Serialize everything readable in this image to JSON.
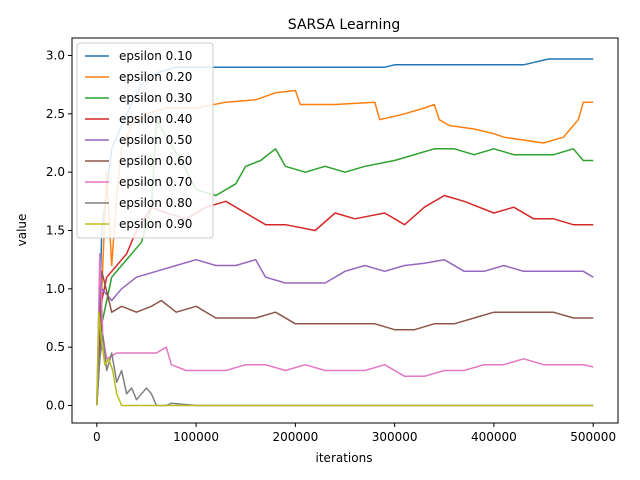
{
  "chart_data": {
    "type": "line",
    "title": "SARSA Learning",
    "xlabel": "iterations",
    "ylabel": "value",
    "xlim": [
      -25000,
      525000
    ],
    "ylim": [
      -0.15,
      3.15
    ],
    "xticks": [
      0,
      100000,
      200000,
      300000,
      400000,
      500000
    ],
    "xtick_labels": [
      "0",
      "100000",
      "200000",
      "300000",
      "400000",
      "500000"
    ],
    "yticks": [
      0.0,
      0.5,
      1.0,
      1.5,
      2.0,
      2.5,
      3.0
    ],
    "ytick_labels": [
      "0.0",
      "0.5",
      "1.0",
      "1.5",
      "2.0",
      "2.5",
      "3.0"
    ],
    "grid": false,
    "legend_position": "upper-left",
    "series": [
      {
        "name": "epsilon 0.10",
        "color": "#1f77b4",
        "x": [
          0,
          5000,
          15000,
          30000,
          45000,
          60000,
          80000,
          100000,
          150000,
          200000,
          250000,
          290000,
          300000,
          350000,
          400000,
          430000,
          445000,
          455000,
          470000,
          500000
        ],
        "y": [
          0.0,
          1.5,
          2.2,
          2.5,
          2.75,
          2.85,
          2.9,
          2.9,
          2.9,
          2.9,
          2.9,
          2.9,
          2.92,
          2.92,
          2.92,
          2.92,
          2.95,
          2.97,
          2.97,
          2.97
        ]
      },
      {
        "name": "epsilon 0.20",
        "color": "#ff7f0e",
        "x": [
          0,
          5000,
          10000,
          15000,
          20000,
          25000,
          35000,
          50000,
          70000,
          100000,
          130000,
          160000,
          180000,
          200000,
          205000,
          240000,
          280000,
          285000,
          310000,
          330000,
          340000,
          345000,
          355000,
          380000,
          400000,
          410000,
          450000,
          470000,
          485000,
          490000,
          500000
        ],
        "y": [
          0.0,
          1.0,
          2.0,
          1.2,
          1.8,
          2.2,
          2.4,
          2.5,
          2.55,
          2.55,
          2.6,
          2.62,
          2.68,
          2.7,
          2.58,
          2.58,
          2.6,
          2.45,
          2.5,
          2.55,
          2.58,
          2.45,
          2.4,
          2.37,
          2.33,
          2.3,
          2.25,
          2.3,
          2.45,
          2.6,
          2.6
        ]
      },
      {
        "name": "epsilon 0.30",
        "color": "#2ca02c",
        "x": [
          0,
          5000,
          15000,
          25000,
          35000,
          45000,
          55000,
          60000,
          70000,
          85000,
          100000,
          120000,
          140000,
          150000,
          165000,
          180000,
          190000,
          210000,
          230000,
          250000,
          270000,
          300000,
          340000,
          360000,
          380000,
          400000,
          420000,
          460000,
          480000,
          490000,
          500000
        ],
        "y": [
          0.0,
          0.7,
          1.1,
          1.2,
          1.3,
          1.4,
          1.7,
          2.45,
          2.3,
          2.1,
          1.85,
          1.8,
          1.9,
          2.05,
          2.1,
          2.2,
          2.05,
          2.0,
          2.05,
          2.0,
          2.05,
          2.1,
          2.2,
          2.2,
          2.15,
          2.2,
          2.15,
          2.15,
          2.2,
          2.1,
          2.1
        ]
      },
      {
        "name": "epsilon 0.40",
        "color": "#d62728",
        "x": [
          0,
          5000,
          10000,
          20000,
          30000,
          40000,
          55000,
          70000,
          90000,
          110000,
          130000,
          150000,
          170000,
          190000,
          220000,
          240000,
          260000,
          290000,
          310000,
          330000,
          350000,
          370000,
          400000,
          420000,
          440000,
          460000,
          480000,
          500000
        ],
        "y": [
          0.0,
          0.9,
          1.1,
          1.2,
          1.3,
          1.5,
          1.7,
          1.65,
          1.6,
          1.7,
          1.75,
          1.65,
          1.55,
          1.55,
          1.5,
          1.65,
          1.6,
          1.65,
          1.55,
          1.7,
          1.8,
          1.75,
          1.65,
          1.7,
          1.6,
          1.6,
          1.55,
          1.55
        ]
      },
      {
        "name": "epsilon 0.50",
        "color": "#9467bd",
        "x": [
          0,
          5000,
          15000,
          25000,
          40000,
          60000,
          80000,
          100000,
          120000,
          140000,
          160000,
          170000,
          190000,
          210000,
          230000,
          250000,
          270000,
          290000,
          310000,
          330000,
          350000,
          370000,
          390000,
          410000,
          430000,
          450000,
          470000,
          490000,
          500000
        ],
        "y": [
          0.0,
          1.0,
          0.9,
          1.0,
          1.1,
          1.15,
          1.2,
          1.25,
          1.2,
          1.2,
          1.25,
          1.1,
          1.05,
          1.05,
          1.05,
          1.15,
          1.2,
          1.15,
          1.2,
          1.22,
          1.25,
          1.15,
          1.15,
          1.2,
          1.15,
          1.15,
          1.15,
          1.15,
          1.1
        ]
      },
      {
        "name": "epsilon 0.60",
        "color": "#8c564b",
        "x": [
          0,
          5000,
          15000,
          25000,
          40000,
          55000,
          65000,
          80000,
          100000,
          120000,
          140000,
          160000,
          180000,
          200000,
          220000,
          240000,
          260000,
          280000,
          300000,
          320000,
          340000,
          360000,
          380000,
          400000,
          420000,
          440000,
          460000,
          480000,
          500000
        ],
        "y": [
          0.0,
          1.15,
          0.8,
          0.85,
          0.8,
          0.85,
          0.9,
          0.8,
          0.85,
          0.75,
          0.75,
          0.75,
          0.8,
          0.7,
          0.7,
          0.7,
          0.7,
          0.7,
          0.65,
          0.65,
          0.7,
          0.7,
          0.75,
          0.8,
          0.8,
          0.8,
          0.8,
          0.75,
          0.75
        ]
      },
      {
        "name": "epsilon 0.70",
        "color": "#e377c2",
        "x": [
          0,
          3000,
          6000,
          10000,
          20000,
          30000,
          45000,
          60000,
          70000,
          75000,
          90000,
          110000,
          130000,
          150000,
          170000,
          190000,
          210000,
          230000,
          250000,
          270000,
          290000,
          310000,
          330000,
          350000,
          370000,
          390000,
          410000,
          430000,
          450000,
          470000,
          490000,
          500000
        ],
        "y": [
          0.0,
          1.3,
          0.6,
          0.4,
          0.45,
          0.45,
          0.45,
          0.45,
          0.5,
          0.35,
          0.3,
          0.3,
          0.3,
          0.35,
          0.35,
          0.3,
          0.35,
          0.3,
          0.3,
          0.3,
          0.35,
          0.25,
          0.25,
          0.3,
          0.3,
          0.35,
          0.35,
          0.4,
          0.35,
          0.35,
          0.35,
          0.33
        ]
      },
      {
        "name": "epsilon 0.80",
        "color": "#7f7f7f",
        "x": [
          0,
          3000,
          6000,
          10000,
          15000,
          20000,
          25000,
          30000,
          35000,
          40000,
          45000,
          50000,
          55000,
          60000,
          70000,
          75000,
          100000,
          200000,
          300000,
          400000,
          500000
        ],
        "y": [
          0.0,
          0.4,
          0.6,
          0.3,
          0.45,
          0.2,
          0.3,
          0.1,
          0.15,
          0.05,
          0.1,
          0.15,
          0.1,
          0.0,
          0.0,
          0.02,
          0.0,
          0.0,
          0.0,
          0.0,
          0.0
        ]
      },
      {
        "name": "epsilon 0.90",
        "color": "#bcbd22",
        "x": [
          0,
          2000,
          4000,
          8000,
          12000,
          16000,
          20000,
          25000,
          30000,
          40000,
          100000,
          200000,
          300000,
          400000,
          500000
        ],
        "y": [
          0.0,
          0.8,
          0.6,
          0.35,
          0.4,
          0.3,
          0.1,
          0.0,
          0.0,
          0.0,
          0.0,
          0.0,
          0.0,
          0.0,
          0.0
        ]
      }
    ]
  }
}
